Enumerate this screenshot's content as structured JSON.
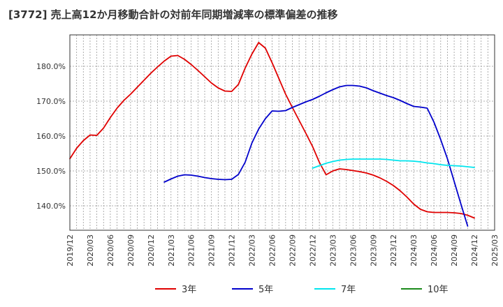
{
  "chart_data": {
    "type": "line",
    "title": "[3772]  売上高12か月移動合計の対前年同期増減率の標準偏差の推移",
    "xlabel": "",
    "ylabel": "",
    "ylim": [
      133,
      189
    ],
    "yticks": [
      140,
      150,
      160,
      170,
      180
    ],
    "ytick_labels": [
      "140.0%",
      "150.0%",
      "160.0%",
      "170.0%",
      "180.0%"
    ],
    "xticks": [
      "2019/12",
      "2020/03",
      "2020/06",
      "2020/09",
      "2020/12",
      "2021/03",
      "2021/06",
      "2021/09",
      "2021/12",
      "2022/03",
      "2022/06",
      "2022/09",
      "2022/12",
      "2023/03",
      "2023/06",
      "2023/09",
      "2023/12",
      "2024/03",
      "2024/06",
      "2024/09",
      "2024/12",
      "2025/03"
    ],
    "grid": true,
    "legend_position": "bottom",
    "series": [
      {
        "name": "3年",
        "color": "#e00000",
        "points": [
          [
            "2019/12",
            153.5
          ],
          [
            "2020/01",
            156.5
          ],
          [
            "2020/02",
            158.7
          ],
          [
            "2020/03",
            160.3
          ],
          [
            "2020/04",
            160.2
          ],
          [
            "2020/05",
            162.3
          ],
          [
            "2020/06",
            165.3
          ],
          [
            "2020/07",
            168.0
          ],
          [
            "2020/08",
            170.2
          ],
          [
            "2020/09",
            172.0
          ],
          [
            "2020/10",
            174.0
          ],
          [
            "2020/11",
            176.0
          ],
          [
            "2020/12",
            178.0
          ],
          [
            "2021/01",
            179.8
          ],
          [
            "2021/02",
            181.5
          ],
          [
            "2021/03",
            182.9
          ],
          [
            "2021/04",
            183.1
          ],
          [
            "2021/05",
            182.0
          ],
          [
            "2021/06",
            180.5
          ],
          [
            "2021/07",
            178.8
          ],
          [
            "2021/08",
            177.0
          ],
          [
            "2021/09",
            175.2
          ],
          [
            "2021/10",
            173.8
          ],
          [
            "2021/11",
            172.9
          ],
          [
            "2021/12",
            172.8
          ],
          [
            "2022/01",
            174.8
          ],
          [
            "2022/02",
            179.5
          ],
          [
            "2022/03",
            183.5
          ],
          [
            "2022/04",
            186.8
          ],
          [
            "2022/05",
            185.2
          ],
          [
            "2022/06",
            181.0
          ],
          [
            "2022/07",
            176.5
          ],
          [
            "2022/08",
            172.0
          ],
          [
            "2022/09",
            168.2
          ],
          [
            "2022/10",
            164.5
          ],
          [
            "2022/11",
            160.8
          ],
          [
            "2022/12",
            157.0
          ],
          [
            "2023/01",
            152.5
          ],
          [
            "2023/02",
            148.9
          ],
          [
            "2023/03",
            150.0
          ],
          [
            "2023/04",
            150.6
          ],
          [
            "2023/05",
            150.4
          ],
          [
            "2023/06",
            150.1
          ],
          [
            "2023/07",
            149.8
          ],
          [
            "2023/08",
            149.4
          ],
          [
            "2023/09",
            148.8
          ],
          [
            "2023/10",
            148.0
          ],
          [
            "2023/11",
            147.0
          ],
          [
            "2023/12",
            145.8
          ],
          [
            "2024/01",
            144.3
          ],
          [
            "2024/02",
            142.5
          ],
          [
            "2024/03",
            140.5
          ],
          [
            "2024/04",
            139.0
          ],
          [
            "2024/05",
            138.3
          ],
          [
            "2024/06",
            138.1
          ],
          [
            "2024/07",
            138.1
          ],
          [
            "2024/08",
            138.1
          ],
          [
            "2024/09",
            138.0
          ],
          [
            "2024/10",
            137.8
          ],
          [
            "2024/11",
            137.3
          ],
          [
            "2024/12",
            136.5
          ]
        ]
      },
      {
        "name": "5年",
        "color": "#0000cc",
        "points": [
          [
            "2021/02",
            146.8
          ],
          [
            "2021/03",
            147.7
          ],
          [
            "2021/04",
            148.5
          ],
          [
            "2021/05",
            148.9
          ],
          [
            "2021/06",
            148.8
          ],
          [
            "2021/07",
            148.5
          ],
          [
            "2021/08",
            148.1
          ],
          [
            "2021/09",
            147.8
          ],
          [
            "2021/10",
            147.6
          ],
          [
            "2021/11",
            147.5
          ],
          [
            "2021/12",
            147.6
          ],
          [
            "2022/01",
            149.0
          ],
          [
            "2022/02",
            152.5
          ],
          [
            "2022/03",
            158.0
          ],
          [
            "2022/04",
            162.0
          ],
          [
            "2022/05",
            165.0
          ],
          [
            "2022/06",
            167.2
          ],
          [
            "2022/07",
            167.1
          ],
          [
            "2022/08",
            167.3
          ],
          [
            "2022/09",
            168.2
          ],
          [
            "2022/10",
            169.0
          ],
          [
            "2022/11",
            169.8
          ],
          [
            "2022/12",
            170.5
          ],
          [
            "2023/01",
            171.4
          ],
          [
            "2023/02",
            172.4
          ],
          [
            "2023/03",
            173.3
          ],
          [
            "2023/04",
            174.1
          ],
          [
            "2023/05",
            174.5
          ],
          [
            "2023/06",
            174.5
          ],
          [
            "2023/07",
            174.3
          ],
          [
            "2023/08",
            173.8
          ],
          [
            "2023/09",
            173.0
          ],
          [
            "2023/10",
            172.3
          ],
          [
            "2023/11",
            171.6
          ],
          [
            "2023/12",
            171.0
          ],
          [
            "2024/01",
            170.2
          ],
          [
            "2024/02",
            169.3
          ],
          [
            "2024/03",
            168.5
          ],
          [
            "2024/04",
            168.3
          ],
          [
            "2024/05",
            168.0
          ],
          [
            "2024/06",
            164.0
          ],
          [
            "2024/07",
            159.0
          ],
          [
            "2024/08",
            153.5
          ],
          [
            "2024/09",
            147.0
          ],
          [
            "2024/10",
            140.5
          ],
          [
            "2024/11",
            134.2
          ]
        ]
      },
      {
        "name": "7年",
        "color": "#00e5ee",
        "points": [
          [
            "2022/12",
            150.8
          ],
          [
            "2023/01",
            151.5
          ],
          [
            "2023/02",
            152.2
          ],
          [
            "2023/03",
            152.7
          ],
          [
            "2023/04",
            153.1
          ],
          [
            "2023/05",
            153.3
          ],
          [
            "2023/06",
            153.4
          ],
          [
            "2023/07",
            153.4
          ],
          [
            "2023/08",
            153.4
          ],
          [
            "2023/09",
            153.4
          ],
          [
            "2023/10",
            153.4
          ],
          [
            "2023/11",
            153.3
          ],
          [
            "2023/12",
            153.1
          ],
          [
            "2024/01",
            152.9
          ],
          [
            "2024/02",
            152.9
          ],
          [
            "2024/03",
            152.8
          ],
          [
            "2024/04",
            152.6
          ],
          [
            "2024/05",
            152.3
          ],
          [
            "2024/06",
            152.1
          ],
          [
            "2024/07",
            151.8
          ],
          [
            "2024/08",
            151.6
          ],
          [
            "2024/09",
            151.5
          ],
          [
            "2024/10",
            151.4
          ],
          [
            "2024/11",
            151.2
          ],
          [
            "2024/12",
            151.0
          ]
        ]
      },
      {
        "name": "10年",
        "color": "#1a8a1a",
        "points": []
      }
    ]
  }
}
